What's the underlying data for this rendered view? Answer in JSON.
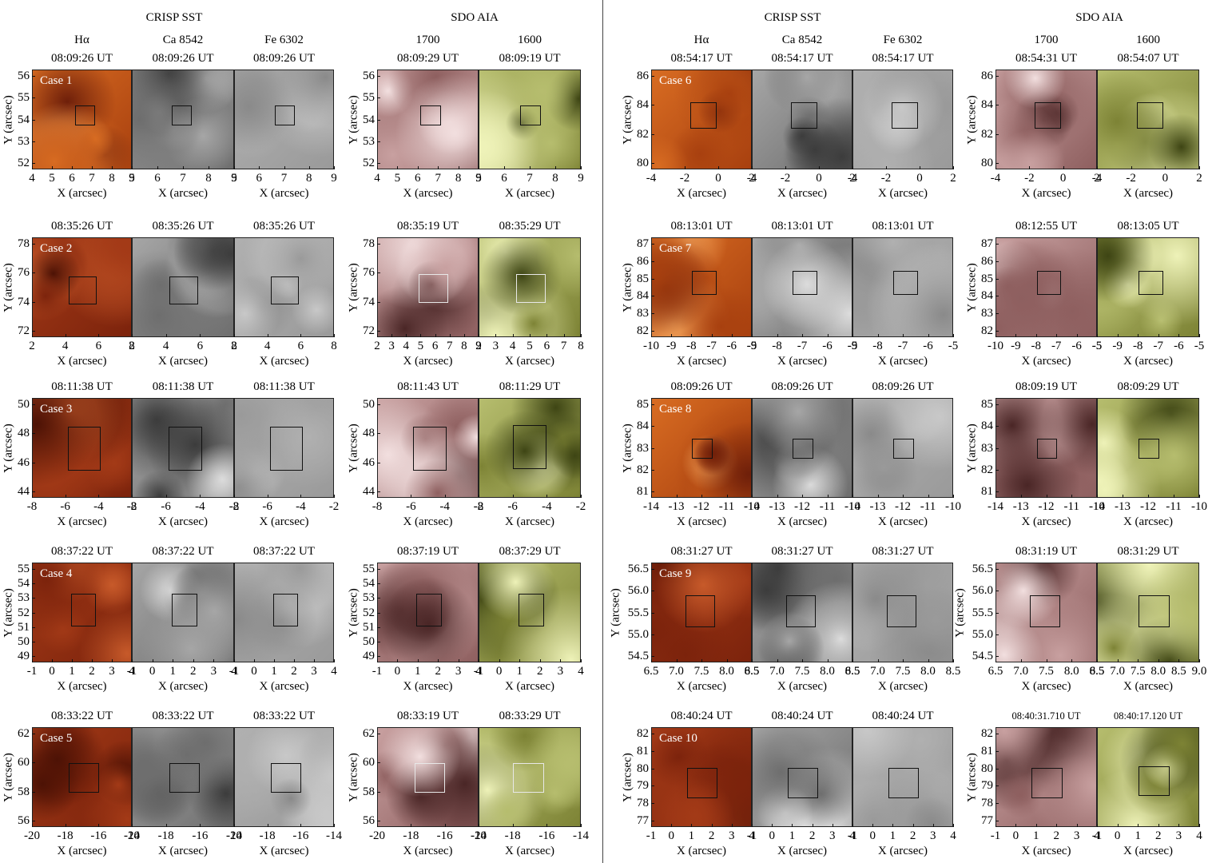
{
  "header_groups": [
    {
      "label": "CRISP SST"
    },
    {
      "label": "SDO AIA"
    },
    {
      "label": "CRISP SST"
    },
    {
      "label": "SDO AIA"
    }
  ],
  "column_labels": [
    "Hα",
    "Ca 8542",
    "Fe 6302",
    "1700",
    "1600"
  ],
  "axis": {
    "x": "X (arcsec)",
    "y": "Y (arcsec)"
  },
  "colors": {
    "ha": "#c2410c",
    "ca": "#8a8a8a",
    "fe": "#a8a8a8",
    "aia1700": "#8e5f5f",
    "aia1600": "#7d8335"
  },
  "cases": [
    {
      "label": "Case 1",
      "times": [
        "08:09:26 UT",
        "08:09:26 UT",
        "08:09:26 UT",
        "08:09:29 UT",
        "08:09:19 UT"
      ],
      "xt": [
        [
          "4",
          "5",
          "6",
          "7",
          "8",
          "9"
        ],
        [
          "5",
          "6",
          "7",
          "8",
          "9"
        ],
        [
          "5",
          "6",
          "7",
          "8",
          "9"
        ],
        [
          "4",
          "5",
          "6",
          "7",
          "8",
          "9"
        ],
        [
          "5",
          "6",
          "7",
          "8",
          "9"
        ]
      ],
      "yt": [
        "56",
        "55",
        "54",
        "53",
        "52"
      ]
    },
    {
      "label": "Case 2",
      "times": [
        "08:35:26 UT",
        "08:35:26 UT",
        "08:35:26 UT",
        "08:35:19 UT",
        "08:35:29 UT"
      ],
      "xt": [
        [
          "2",
          "4",
          "6",
          "8"
        ],
        [
          "2",
          "4",
          "6",
          "8"
        ],
        [
          "2",
          "4",
          "6",
          "8"
        ],
        [
          "2",
          "3",
          "4",
          "5",
          "6",
          "7",
          "8",
          "9"
        ],
        [
          "2",
          "3",
          "4",
          "5",
          "6",
          "7",
          "8"
        ]
      ],
      "yt": [
        "78",
        "76",
        "74",
        "72"
      ]
    },
    {
      "label": "Case 3",
      "times": [
        "08:11:38 UT",
        "08:11:38 UT",
        "08:11:38 UT",
        "08:11:43 UT",
        "08:11:29 UT"
      ],
      "xt": [
        [
          "-8",
          "-6",
          "-4",
          "-2"
        ],
        [
          "-8",
          "-6",
          "-4",
          "-2"
        ],
        [
          "-8",
          "-6",
          "-4",
          "-2"
        ],
        [
          "-8",
          "-6",
          "-4",
          "-2"
        ],
        [
          "-8",
          "-6",
          "-4",
          "-2"
        ]
      ],
      "yt": [
        "50",
        "48",
        "46",
        "44"
      ]
    },
    {
      "label": "Case 4",
      "times": [
        "08:37:22  UT",
        "08:37:22  UT",
        "08:37:22  UT",
        "08:37:19 UT",
        "08:37:29 UT"
      ],
      "xt": [
        [
          "-1",
          "0",
          "1",
          "2",
          "3",
          "4"
        ],
        [
          "-1",
          "0",
          "1",
          "2",
          "3",
          "4"
        ],
        [
          "-1",
          "0",
          "1",
          "2",
          "3",
          "4"
        ],
        [
          "-1",
          "0",
          "1",
          "2",
          "3",
          "4"
        ],
        [
          "-1",
          "0",
          "1",
          "2",
          "3",
          "4"
        ]
      ],
      "yt": [
        "55",
        "54",
        "53",
        "52",
        "51",
        "50",
        "49"
      ]
    },
    {
      "label": "Case 5",
      "times": [
        "08:33:22 UT",
        "08:33:22 UT",
        "08:33:22 UT",
        "08:33:19 UT",
        "08:33:29 UT"
      ],
      "xt": [
        [
          "-20",
          "-18",
          "-16",
          "-14"
        ],
        [
          "-20",
          "-18",
          "-16",
          "-14"
        ],
        [
          "-20",
          "-18",
          "-16",
          "-14"
        ],
        [
          "-20",
          "-18",
          "-16",
          "-14"
        ],
        [
          "-20",
          "-18",
          "-16",
          "-14"
        ]
      ],
      "yt": [
        "62",
        "60",
        "58",
        "56"
      ]
    },
    {
      "label": "Case 6",
      "times": [
        "08:54:17 UT",
        "08:54:17 UT",
        "08:54:17 UT",
        "08:54:31 UT",
        "08:54:07 UT"
      ],
      "xt": [
        [
          "-4",
          "-2",
          "0",
          "2"
        ],
        [
          "-4",
          "-2",
          "0",
          "2"
        ],
        [
          "-4",
          "-2",
          "0",
          "2"
        ],
        [
          "-4",
          "-2",
          "0",
          "2"
        ],
        [
          "-4",
          "-2",
          "0",
          "2"
        ]
      ],
      "yt": [
        "86",
        "84",
        "82",
        "80"
      ]
    },
    {
      "label": "Case 7",
      "times": [
        "08:13:01 UT",
        "08:13:01 UT",
        "08:13:01 UT",
        "08:12:55 UT",
        "08:13:05 UT"
      ],
      "xt": [
        [
          "-10",
          "-9",
          "-8",
          "-7",
          "-6",
          "-5"
        ],
        [
          "-9",
          "-8",
          "-7",
          "-6",
          "-5"
        ],
        [
          "-9",
          "-8",
          "-7",
          "-6",
          "-5"
        ],
        [
          "-10",
          "-9",
          "-8",
          "-7",
          "-6",
          "-5"
        ],
        [
          "-5",
          "-9",
          "-8",
          "-7",
          "-6",
          "-5"
        ]
      ],
      "yt": [
        "87",
        "86",
        "85",
        "84",
        "83",
        "82"
      ]
    },
    {
      "label": "Case 8",
      "times": [
        "08:09:26 UT",
        "08:09:26 UT",
        "08:09:26 UT",
        "08:09:19 UT",
        "08:09:29 UT"
      ],
      "xt": [
        [
          "-14",
          "-13",
          "-12",
          "-11",
          "-10"
        ],
        [
          "-14",
          "-13",
          "-12",
          "-11",
          "-10"
        ],
        [
          "-14",
          "-13",
          "-12",
          "-11",
          "-10"
        ],
        [
          "-14",
          "-13",
          "-12",
          "-11",
          "-10"
        ],
        [
          "-14",
          "-13",
          "-12",
          "-11",
          "-10"
        ]
      ],
      "yt": [
        "85",
        "84",
        "83",
        "82",
        "81"
      ]
    },
    {
      "label": "Case 9",
      "times": [
        "08:31:27 UT",
        "08:31:27 UT",
        "08:31:27 UT",
        "08:31:19 UT",
        "08:31:29 UT"
      ],
      "xt": [
        [
          "6.5",
          "7.0",
          "7.5",
          "8.0",
          "8.5"
        ],
        [
          "6.5",
          "7.0",
          "7.5",
          "8.0",
          "8.5"
        ],
        [
          "6.5",
          "7.0",
          "7.5",
          "8.0",
          "8.5"
        ],
        [
          "6.5",
          "7.0",
          "7.5",
          "8.0",
          "8.5"
        ],
        [
          "6.5",
          "7.0",
          "7.5",
          "8.0",
          "8.5",
          "9.0"
        ]
      ],
      "yt": [
        "56.5",
        "56.0",
        "55.5",
        "55.0",
        "54.5"
      ]
    },
    {
      "label": "Case 10",
      "times": [
        "08:40:24 UT",
        "08:40:24 UT",
        "08:40:24 UT",
        "08:40:31.710 UT",
        "08:40:17.120 UT"
      ],
      "xt": [
        [
          "-1",
          "0",
          "1",
          "2",
          "3",
          "4"
        ],
        [
          "-1",
          "0",
          "1",
          "2",
          "3",
          "4"
        ],
        [
          "-1",
          "0",
          "1",
          "2",
          "3",
          "4"
        ],
        [
          "-1",
          "0",
          "1",
          "2",
          "3",
          "4"
        ],
        [
          "-1",
          "0",
          "1",
          "2",
          "3",
          "4"
        ]
      ],
      "yt": [
        "82",
        "81",
        "80",
        "79",
        "78",
        "77"
      ]
    }
  ]
}
